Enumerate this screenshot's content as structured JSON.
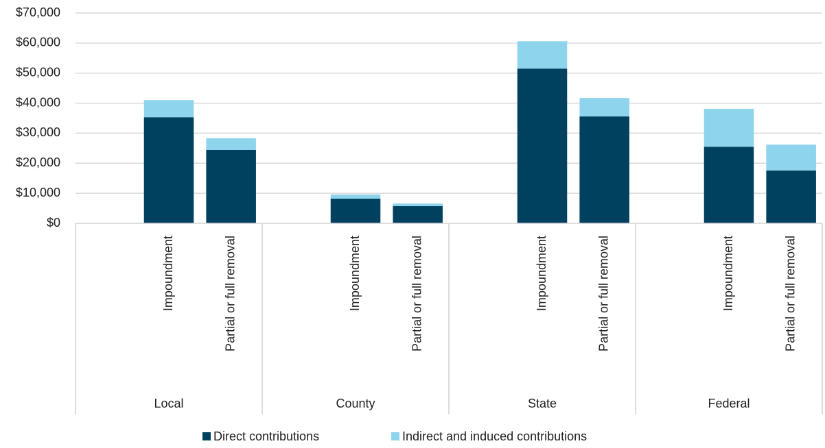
{
  "chart_data": {
    "type": "stacked_bar",
    "categories": [
      null,
      "Impoundment",
      "Partial or full removal",
      null,
      "Impoundment",
      "Partial or full removal",
      null,
      "Impoundment",
      "Partial or full removal",
      null,
      "Impoundment",
      "Partial or full removal"
    ],
    "groups": [
      "Local",
      "County",
      "State",
      "Federal"
    ],
    "series": [
      {
        "name": "Direct contributions",
        "color": "#00415f",
        "values": [
          null,
          35300,
          24400,
          null,
          8200,
          5700,
          null,
          51500,
          35600,
          null,
          25500,
          17600
        ]
      },
      {
        "name": "Indirect and induced contributions",
        "color": "#8ed4ec",
        "values": [
          null,
          5700,
          3900,
          null,
          1400,
          900,
          null,
          9100,
          6100,
          null,
          12600,
          8600
        ]
      }
    ],
    "ylim": [
      0,
      70000
    ],
    "yticks": [
      {
        "value": 0,
        "label": "$0"
      },
      {
        "value": 10000,
        "label": "$10,000"
      },
      {
        "value": 20000,
        "label": "$20,000"
      },
      {
        "value": 30000,
        "label": "$30,000"
      },
      {
        "value": 40000,
        "label": "$40,000"
      },
      {
        "value": 50000,
        "label": "$50,000"
      },
      {
        "value": 60000,
        "label": "$60,000"
      },
      {
        "value": 70000,
        "label": "$70,000"
      }
    ],
    "grid": true,
    "legend": "bottom"
  }
}
